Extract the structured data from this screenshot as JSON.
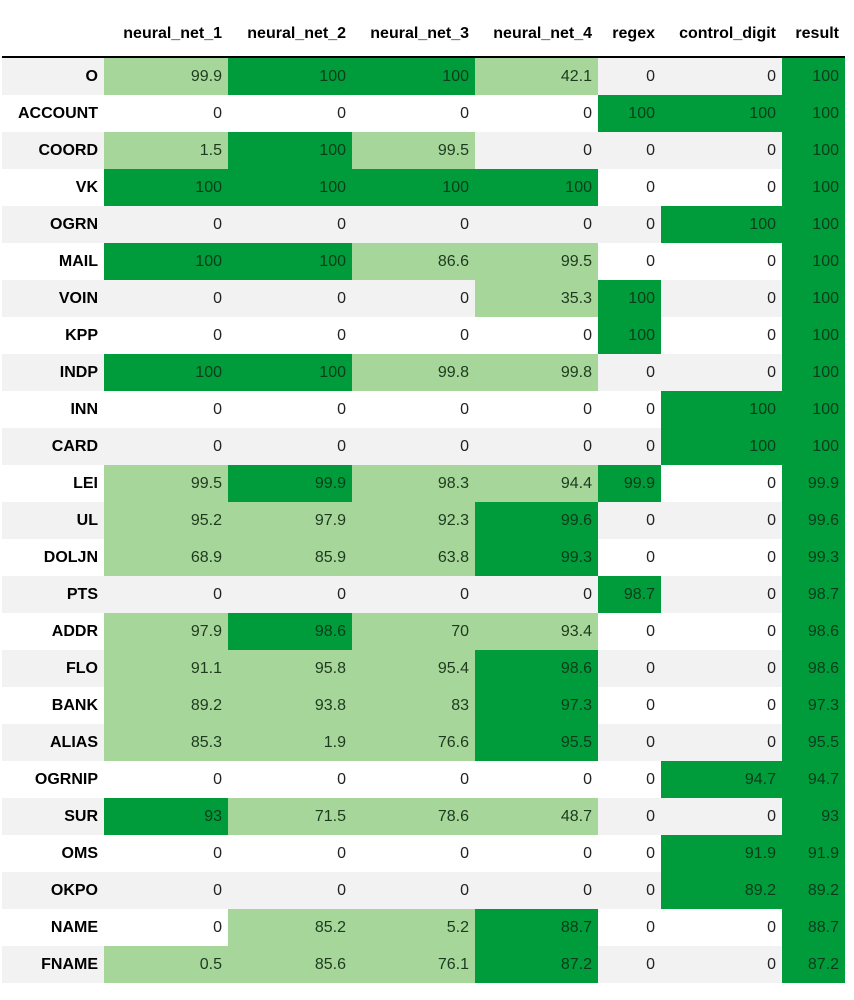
{
  "columns": [
    "neural_net_1",
    "neural_net_2",
    "neural_net_3",
    "neural_net_4",
    "regex",
    "control_digit",
    "result"
  ],
  "rows": [
    {
      "label": "O",
      "values": [
        "99.9",
        "100",
        "100",
        "42.1",
        "0",
        "0",
        "100"
      ],
      "levels": [
        1,
        2,
        2,
        1,
        0,
        0,
        2
      ]
    },
    {
      "label": "ACCOUNT",
      "values": [
        "0",
        "0",
        "0",
        "0",
        "100",
        "100",
        "100"
      ],
      "levels": [
        0,
        0,
        0,
        0,
        2,
        2,
        2
      ]
    },
    {
      "label": "COORD",
      "values": [
        "1.5",
        "100",
        "99.5",
        "0",
        "0",
        "0",
        "100"
      ],
      "levels": [
        1,
        2,
        1,
        0,
        0,
        0,
        2
      ]
    },
    {
      "label": "VK",
      "values": [
        "100",
        "100",
        "100",
        "100",
        "0",
        "0",
        "100"
      ],
      "levels": [
        2,
        2,
        2,
        2,
        0,
        0,
        2
      ]
    },
    {
      "label": "OGRN",
      "values": [
        "0",
        "0",
        "0",
        "0",
        "0",
        "100",
        "100"
      ],
      "levels": [
        0,
        0,
        0,
        0,
        0,
        2,
        2
      ]
    },
    {
      "label": "MAIL",
      "values": [
        "100",
        "100",
        "86.6",
        "99.5",
        "0",
        "0",
        "100"
      ],
      "levels": [
        2,
        2,
        1,
        1,
        0,
        0,
        2
      ]
    },
    {
      "label": "VOIN",
      "values": [
        "0",
        "0",
        "0",
        "35.3",
        "100",
        "0",
        "100"
      ],
      "levels": [
        0,
        0,
        0,
        1,
        2,
        0,
        2
      ]
    },
    {
      "label": "KPP",
      "values": [
        "0",
        "0",
        "0",
        "0",
        "100",
        "0",
        "100"
      ],
      "levels": [
        0,
        0,
        0,
        0,
        2,
        0,
        2
      ]
    },
    {
      "label": "INDP",
      "values": [
        "100",
        "100",
        "99.8",
        "99.8",
        "0",
        "0",
        "100"
      ],
      "levels": [
        2,
        2,
        1,
        1,
        0,
        0,
        2
      ]
    },
    {
      "label": "INN",
      "values": [
        "0",
        "0",
        "0",
        "0",
        "0",
        "100",
        "100"
      ],
      "levels": [
        0,
        0,
        0,
        0,
        0,
        2,
        2
      ]
    },
    {
      "label": "CARD",
      "values": [
        "0",
        "0",
        "0",
        "0",
        "0",
        "100",
        "100"
      ],
      "levels": [
        0,
        0,
        0,
        0,
        0,
        2,
        2
      ]
    },
    {
      "label": "LEI",
      "values": [
        "99.5",
        "99.9",
        "98.3",
        "94.4",
        "99.9",
        "0",
        "99.9"
      ],
      "levels": [
        1,
        2,
        1,
        1,
        2,
        0,
        2
      ]
    },
    {
      "label": "UL",
      "values": [
        "95.2",
        "97.9",
        "92.3",
        "99.6",
        "0",
        "0",
        "99.6"
      ],
      "levels": [
        1,
        1,
        1,
        2,
        0,
        0,
        2
      ]
    },
    {
      "label": "DOLJN",
      "values": [
        "68.9",
        "85.9",
        "63.8",
        "99.3",
        "0",
        "0",
        "99.3"
      ],
      "levels": [
        1,
        1,
        1,
        2,
        0,
        0,
        2
      ]
    },
    {
      "label": "PTS",
      "values": [
        "0",
        "0",
        "0",
        "0",
        "98.7",
        "0",
        "98.7"
      ],
      "levels": [
        0,
        0,
        0,
        0,
        2,
        0,
        2
      ]
    },
    {
      "label": "ADDR",
      "values": [
        "97.9",
        "98.6",
        "70",
        "93.4",
        "0",
        "0",
        "98.6"
      ],
      "levels": [
        1,
        2,
        1,
        1,
        0,
        0,
        2
      ]
    },
    {
      "label": "FLO",
      "values": [
        "91.1",
        "95.8",
        "95.4",
        "98.6",
        "0",
        "0",
        "98.6"
      ],
      "levels": [
        1,
        1,
        1,
        2,
        0,
        0,
        2
      ]
    },
    {
      "label": "BANK",
      "values": [
        "89.2",
        "93.8",
        "83",
        "97.3",
        "0",
        "0",
        "97.3"
      ],
      "levels": [
        1,
        1,
        1,
        2,
        0,
        0,
        2
      ]
    },
    {
      "label": "ALIAS",
      "values": [
        "85.3",
        "1.9",
        "76.6",
        "95.5",
        "0",
        "0",
        "95.5"
      ],
      "levels": [
        1,
        1,
        1,
        2,
        0,
        0,
        2
      ]
    },
    {
      "label": "OGRNIP",
      "values": [
        "0",
        "0",
        "0",
        "0",
        "0",
        "94.7",
        "94.7"
      ],
      "levels": [
        0,
        0,
        0,
        0,
        0,
        2,
        2
      ]
    },
    {
      "label": "SUR",
      "values": [
        "93",
        "71.5",
        "78.6",
        "48.7",
        "0",
        "0",
        "93"
      ],
      "levels": [
        2,
        1,
        1,
        1,
        0,
        0,
        2
      ]
    },
    {
      "label": "OMS",
      "values": [
        "0",
        "0",
        "0",
        "0",
        "0",
        "91.9",
        "91.9"
      ],
      "levels": [
        0,
        0,
        0,
        0,
        0,
        2,
        2
      ]
    },
    {
      "label": "OKPO",
      "values": [
        "0",
        "0",
        "0",
        "0",
        "0",
        "89.2",
        "89.2"
      ],
      "levels": [
        0,
        0,
        0,
        0,
        0,
        2,
        2
      ]
    },
    {
      "label": "NAME",
      "values": [
        "0",
        "85.2",
        "5.2",
        "88.7",
        "0",
        "0",
        "88.7"
      ],
      "levels": [
        0,
        1,
        1,
        2,
        0,
        0,
        2
      ]
    },
    {
      "label": "FNAME",
      "values": [
        "0.5",
        "85.6",
        "76.1",
        "87.2",
        "0",
        "0",
        "87.2"
      ],
      "levels": [
        1,
        1,
        1,
        2,
        0,
        0,
        2
      ]
    }
  ],
  "colors": {
    "strong": "#009b3a",
    "weak": "#a6d69a",
    "row_odd": "#f2f2f2",
    "row_even": "#ffffff"
  }
}
